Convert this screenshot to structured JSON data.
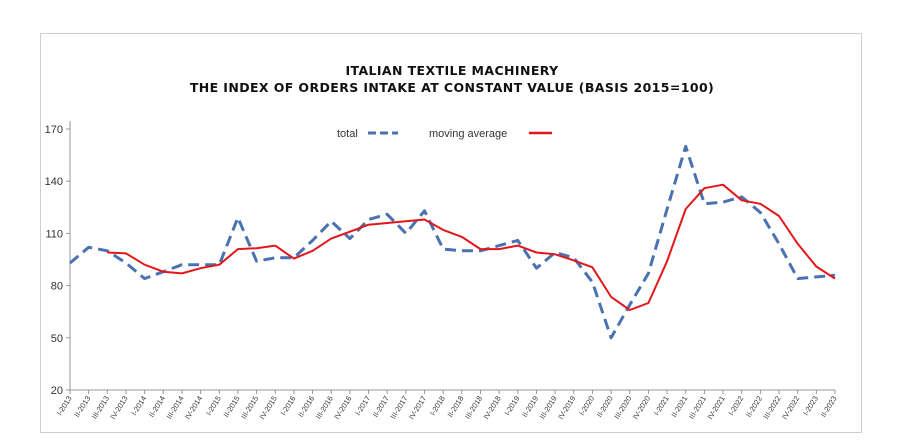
{
  "chart_data": {
    "type": "line",
    "title": "ITALIAN TEXTILE MACHINERY",
    "subtitle": "THE INDEX OF ORDERS INTAKE AT CONSTANT VALUE (BASIS 2015=100)",
    "xlabel": "",
    "ylabel": "",
    "ylim": [
      20,
      170
    ],
    "yticks": [
      20,
      50,
      80,
      110,
      140,
      170
    ],
    "grid": false,
    "legend_position": "top-center",
    "categories": [
      "I-2013",
      "II-2013",
      "III-2013",
      "IV-2013",
      "I-2014",
      "II-2014",
      "III-2014",
      "IV-2014",
      "I-2015",
      "II-2015",
      "III-2015",
      "IV-2015",
      "I-2016",
      "II-2016",
      "III-2016",
      "IV-2016",
      "I-2017",
      "II-2017",
      "III-2017",
      "IV-2017",
      "I-2018",
      "II-2018",
      "III-2018",
      "IV-2018",
      "I-2019",
      "II-2019",
      "III-2019",
      "IV-2019",
      "I-2020",
      "II-2020",
      "III-2020",
      "IV-2020",
      "I-2021",
      "II-2021",
      "III-2021",
      "IV-2021",
      "I-2022",
      "II-2022",
      "III-2022",
      "IV-2022",
      "I-2023",
      "II-2023"
    ],
    "series": [
      {
        "name": "total",
        "style": "dashed",
        "color": "#4a72b0",
        "values": [
          93,
          102,
          100,
          93,
          84,
          88,
          92,
          92,
          92,
          119,
          94,
          96,
          96,
          106,
          117,
          107,
          118,
          121,
          110,
          123,
          101,
          100,
          100,
          103,
          106,
          90,
          99,
          96,
          82,
          50,
          69,
          87,
          124,
          160,
          127,
          128,
          131,
          122,
          104,
          84,
          85,
          86
        ]
      },
      {
        "name": "moving average",
        "style": "solid",
        "color": "#e3161b",
        "values": [
          null,
          null,
          99,
          98.5,
          92,
          88,
          87,
          90,
          92,
          101,
          101.5,
          103,
          95.5,
          100,
          107,
          111,
          115,
          116,
          117,
          118,
          112,
          108,
          101,
          101,
          103,
          99,
          98,
          94.5,
          90.5,
          73.5,
          66,
          70,
          94,
          124,
          136,
          138,
          129,
          127,
          120,
          104,
          91,
          84
        ]
      }
    ]
  }
}
